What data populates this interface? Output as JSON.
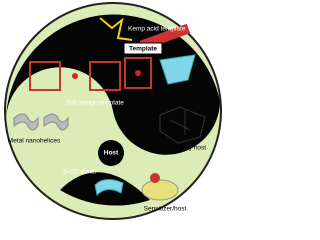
{
  "labels": {
    "kemp_acid": "Kemp acid template",
    "template": "Template",
    "salt_bridge": "Salt bridge template",
    "gamma_cd": "γ-CD",
    "nanohelices": "Metal nanohelices",
    "host": "Host",
    "tri_cavity": "Tri-cavity host",
    "beta_cd_dimer": "β-CD dimer",
    "sensitizer": "Sensitizer/host"
  }
}
